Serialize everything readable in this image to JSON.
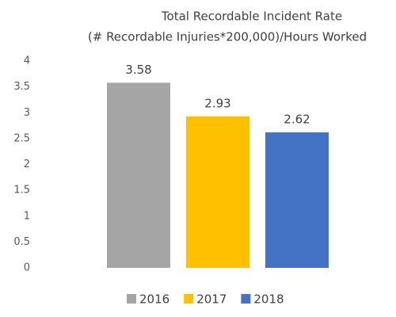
{
  "chart_data": {
    "type": "bar",
    "title": "Total Recordable Incident Rate",
    "subtitle": "(# Recordable Injuries*200,000)/Hours Worked",
    "categories": [
      null
    ],
    "series": [
      {
        "name": "2016",
        "color": "#a5a5a5",
        "values": [
          3.58
        ]
      },
      {
        "name": "2017",
        "color": "#ffc000",
        "values": [
          2.93
        ]
      },
      {
        "name": "2018",
        "color": "#4472c4",
        "values": [
          2.62
        ]
      }
    ],
    "ylim": [
      0,
      4
    ],
    "yticks": [
      0,
      0.5,
      1,
      1.5,
      2,
      2.5,
      3,
      3.5,
      4
    ],
    "grid": false,
    "legend": "bottom"
  }
}
